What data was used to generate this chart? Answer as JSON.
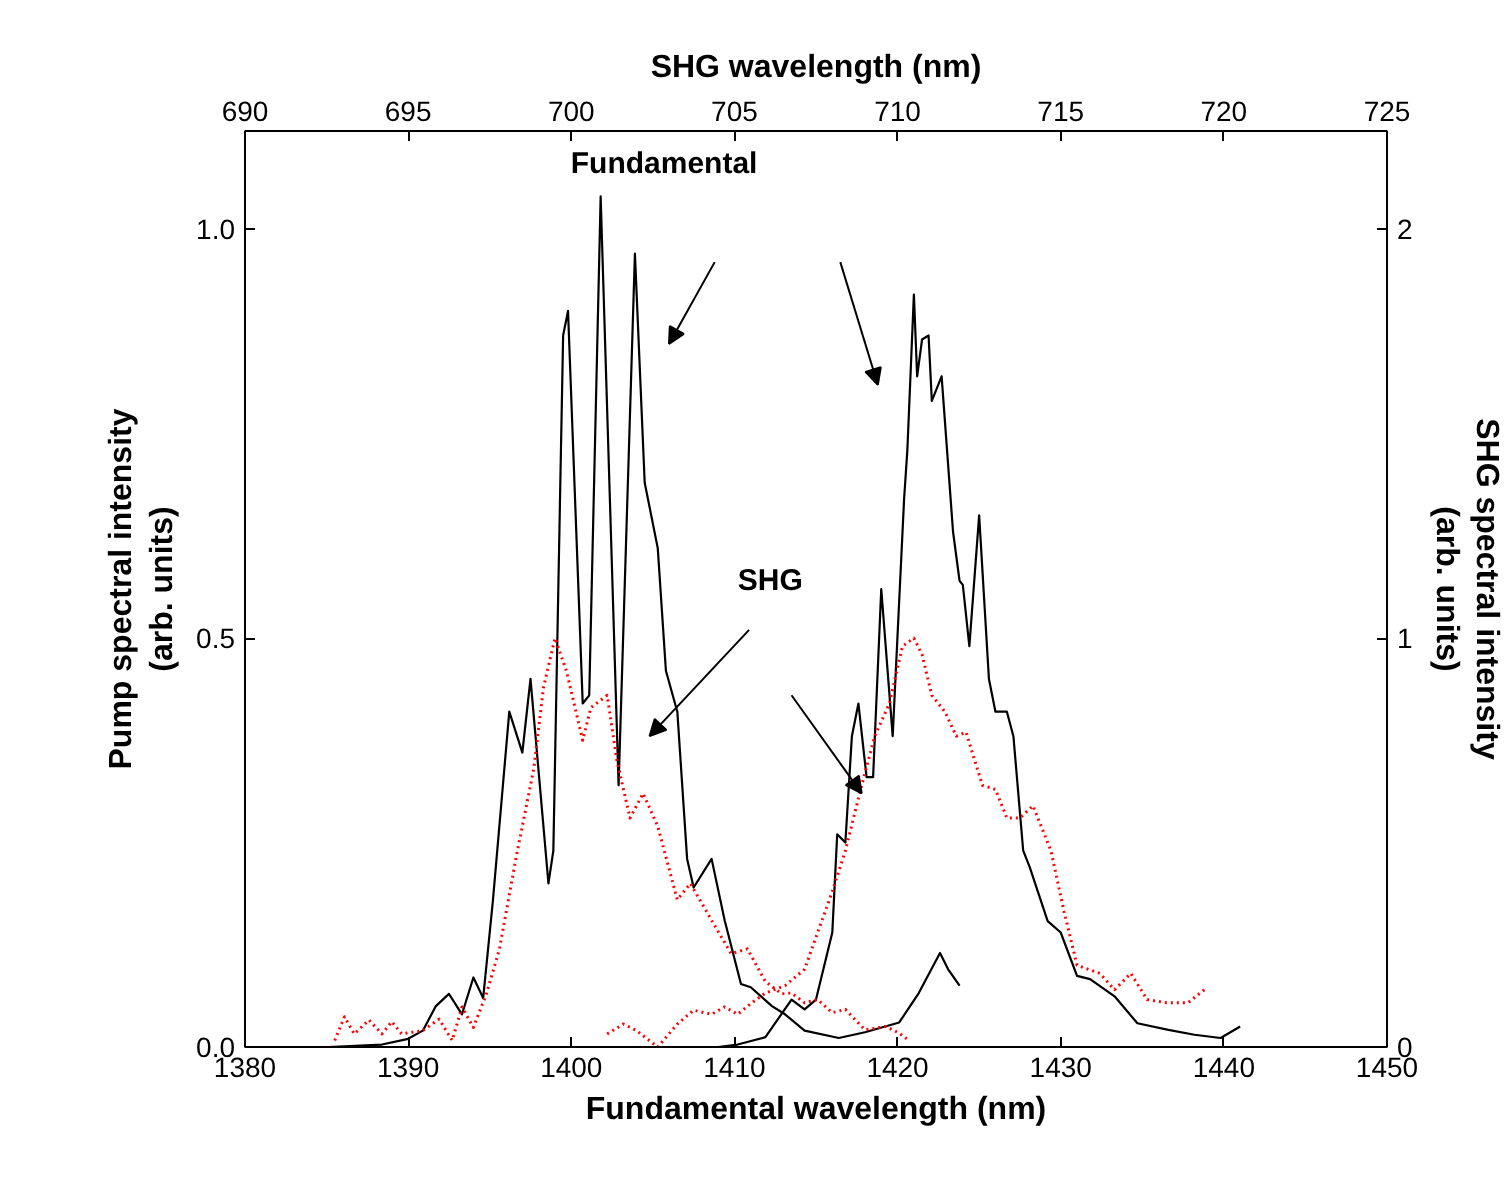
{
  "chart_data": {
    "type": "line",
    "xlabel": "Fundamental wavelength (nm)",
    "ylabel": "Pump spectral intensity\n(arb. units)",
    "y2label": "SHG spectral intensity\n(arb. units)",
    "x2label": "SHG wavelength (nm)",
    "xlim": [
      1380,
      1450
    ],
    "xticks": [
      1380,
      1390,
      1400,
      1410,
      1420,
      1430,
      1440,
      1450
    ],
    "x2lim": [
      690,
      725
    ],
    "x2ticks": [
      690,
      695,
      700,
      705,
      710,
      715,
      720,
      725
    ],
    "ylim": [
      0,
      1.12
    ],
    "yticks": [
      {
        "value": 0,
        "label": "0.0"
      },
      {
        "value": 0.5,
        "label": "0.5"
      },
      {
        "value": 1,
        "label": "1.0"
      }
    ],
    "y2lim": [
      0,
      2.24
    ],
    "y2ticks": [
      0,
      1,
      2
    ],
    "grid": false,
    "marker": "none",
    "annotations": [
      "Fundamental",
      "SHG"
    ],
    "series": [
      {
        "color": "#000000",
        "line_style": "solid",
        "x": [
          1385.1,
          1388.4,
          1390.0,
          1390.9,
          1391.7,
          1392.5,
          1393.3,
          1394.0,
          1394.6,
          1395.2,
          1396.2,
          1397.0,
          1397.5,
          1398.6,
          1398.9,
          1399.5,
          1399.8,
          1400.7,
          1401.1,
          1401.8,
          1402.9,
          1403.9,
          1404.5,
          1405.3,
          1405.8,
          1406.5,
          1407.1,
          1407.5,
          1408.6,
          1409.4,
          1410.4,
          1411.0,
          1412.3,
          1413.1,
          1414.3,
          1416.4,
          1418.0,
          1420.1,
          1421.3,
          1422.6,
          1423.1,
          1423.8
        ],
        "values": [
          0,
          0.003,
          0.01,
          0.02,
          0.05,
          0.065,
          0.04,
          0.085,
          0.06,
          0.18,
          0.41,
          0.36,
          0.45,
          0.2,
          0.24,
          0.87,
          0.9,
          0.42,
          0.43,
          1.04,
          0.32,
          0.97,
          0.69,
          0.61,
          0.46,
          0.41,
          0.23,
          0.195,
          0.23,
          0.155,
          0.077,
          0.073,
          0.05,
          0.04,
          0.02,
          0.011,
          0.018,
          0.03,
          0.066,
          0.115,
          0.095,
          0.075
        ]
      },
      {
        "color": "#000000",
        "line_style": "solid",
        "x": [
          1409.0,
          1410.2,
          1411.9,
          1413.5,
          1414.3,
          1415.0,
          1416.0,
          1416.3,
          1416.8,
          1417.2,
          1417.6,
          1418.1,
          1418.5,
          1419.0,
          1419.7,
          1420.4,
          1420.6,
          1421.0,
          1421.2,
          1421.5,
          1421.9,
          1422.1,
          1422.7,
          1423.4,
          1423.8,
          1424.0,
          1424.4,
          1425.0,
          1425.6,
          1426.0,
          1426.7,
          1427.1,
          1427.7,
          1428.1,
          1429.2,
          1430.0,
          1431.0,
          1431.8,
          1433.3,
          1434.7,
          1436.6,
          1438.2,
          1439.8,
          1441.0
        ],
        "values": [
          0,
          0.003,
          0.012,
          0.058,
          0.046,
          0.058,
          0.14,
          0.26,
          0.25,
          0.38,
          0.42,
          0.33,
          0.33,
          0.56,
          0.38,
          0.67,
          0.73,
          0.92,
          0.82,
          0.865,
          0.87,
          0.79,
          0.82,
          0.63,
          0.57,
          0.565,
          0.49,
          0.65,
          0.45,
          0.41,
          0.41,
          0.38,
          0.24,
          0.22,
          0.154,
          0.14,
          0.087,
          0.083,
          0.062,
          0.029,
          0.021,
          0.015,
          0.011,
          0.025
        ]
      },
      {
        "color": "#ff0000",
        "line_style": "dotted",
        "axis": "y2",
        "x": [
          1385.5,
          1386.1,
          1386.7,
          1387.6,
          1388.4,
          1389.0,
          1389.6,
          1390.9,
          1391.9,
          1392.7,
          1393.3,
          1394.0,
          1394.8,
          1395.6,
          1396.6,
          1397.7,
          1398.3,
          1399.0,
          1399.7,
          1400.7,
          1401.2,
          1402.2,
          1402.8,
          1403.6,
          1404.4,
          1405.3,
          1406.5,
          1407.3,
          1408.6,
          1409.8,
          1410.8,
          1411.9,
          1412.9,
          1413.5,
          1414.3,
          1415.1,
          1416.0,
          1416.8,
          1418.0,
          1419.3,
          1420.1,
          1420.7
        ],
        "values": [
          0.016,
          0.074,
          0.032,
          0.066,
          0.032,
          0.062,
          0.032,
          0.04,
          0.068,
          0.016,
          0.098,
          0.048,
          0.13,
          0.24,
          0.46,
          0.68,
          0.88,
          1.0,
          0.92,
          0.75,
          0.83,
          0.86,
          0.7,
          0.56,
          0.62,
          0.54,
          0.36,
          0.4,
          0.31,
          0.228,
          0.24,
          0.16,
          0.13,
          0.132,
          0.108,
          0.116,
          0.084,
          0.092,
          0.042,
          0.05,
          0.034,
          0.016
        ]
      },
      {
        "color": "#ff0000",
        "line_style": "dotted",
        "axis": "y2",
        "x": [
          1402.2,
          1403.2,
          1404.0,
          1405.3,
          1406.5,
          1407.5,
          1408.6,
          1409.4,
          1410.2,
          1411.0,
          1411.9,
          1413.1,
          1414.3,
          1415.1,
          1416.0,
          1416.8,
          1417.8,
          1418.6,
          1419.5,
          1420.3,
          1421.0,
          1421.5,
          1422.1,
          1422.9,
          1423.6,
          1424.2,
          1425.2,
          1426.0,
          1426.7,
          1427.5,
          1428.3,
          1429.4,
          1430.2,
          1431.0,
          1432.4,
          1433.3,
          1434.3,
          1435.3,
          1436.5,
          1437.8,
          1438.8
        ],
        "values": [
          0.032,
          0.056,
          0.04,
          0,
          0.056,
          0.09,
          0.08,
          0.098,
          0.08,
          0.106,
          0.132,
          0.15,
          0.19,
          0.28,
          0.38,
          0.48,
          0.64,
          0.76,
          0.84,
          0.98,
          1.0,
          0.96,
          0.86,
          0.82,
          0.76,
          0.77,
          0.64,
          0.63,
          0.56,
          0.56,
          0.59,
          0.48,
          0.332,
          0.2,
          0.18,
          0.14,
          0.18,
          0.116,
          0.108,
          0.108,
          0.14
        ]
      }
    ]
  }
}
